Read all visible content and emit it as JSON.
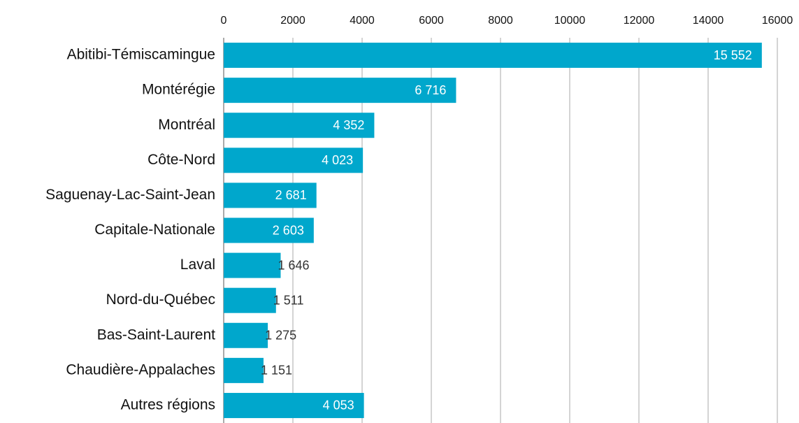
{
  "chart_data": {
    "type": "barh",
    "categories": [
      "Abitibi-Témiscamingue",
      "Montérégie",
      "Montréal",
      "Côte-Nord",
      "Saguenay-Lac-Saint-Jean",
      "Capitale-Nationale",
      "Laval",
      "Nord-du-Québec",
      "Bas-Saint-Laurent",
      "Chaudière-Appalaches",
      "Autres régions"
    ],
    "values": [
      15552,
      6716,
      4352,
      4023,
      2681,
      2603,
      1646,
      1511,
      1275,
      1151,
      4053
    ],
    "value_labels": [
      "15 552",
      "6 716",
      "4 352",
      "4 023",
      "2 681",
      "2 603",
      "1 646",
      "1 511",
      "1 275",
      "1 151",
      "4 053"
    ],
    "color": "#00a7cc",
    "xlim": [
      0,
      16000
    ],
    "xticks": [
      0,
      2000,
      4000,
      6000,
      8000,
      10000,
      12000,
      14000,
      16000
    ],
    "grid": true
  }
}
